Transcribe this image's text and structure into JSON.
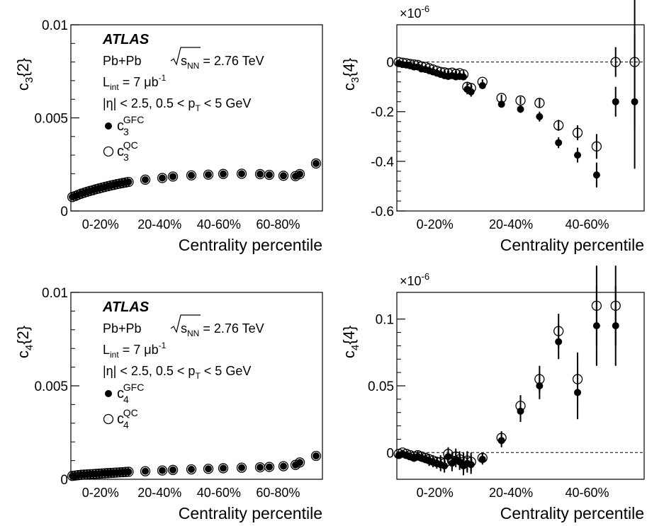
{
  "experiment": "ATLAS",
  "collision": "Pb+Pb",
  "energy_sqrt": "s",
  "energy_sub": "NN",
  "energy_value": "= 2.76 TeV",
  "lumi_main": "L",
  "lumi_sub": "int",
  "lumi_value": "= 7 μb",
  "lumi_exp": "-1",
  "cut_eta": "|η| < 2.5,",
  "cut_pt_pre": "0.5 < p",
  "cut_pt_sub": "T",
  "cut_pt_post": "< 5 GeV",
  "chart_data": [
    {
      "id": "c3_2",
      "type": "scatter",
      "ylabel_main": "c",
      "ylabel_sub": "3",
      "ylabel_rest": "{2}",
      "xlabel": "Centrality percentile",
      "xlim": [
        0,
        85
      ],
      "ylim": [
        0,
        0.01
      ],
      "yticks": [
        0,
        0.005,
        0.01
      ],
      "ytick_labels": [
        "0",
        "0.005",
        "0.01"
      ],
      "xcat_labels": [
        "0-20%",
        "20-40%",
        "40-60%",
        "60-80%"
      ],
      "xcat_centers": [
        10,
        30,
        50,
        70
      ],
      "zero_line": false,
      "legend": [
        {
          "marker": "filled",
          "main": "c",
          "sub": "3",
          "sup": "GFC"
        },
        {
          "marker": "open",
          "main": "c",
          "sub": "3",
          "sup": "QC"
        }
      ],
      "series": [
        {
          "name": "GFC",
          "marker": "filled",
          "x": [
            0.5,
            1.5,
            2.5,
            3.5,
            4.5,
            5.5,
            6.5,
            7.5,
            8.5,
            9.5,
            10.5,
            11.5,
            12.5,
            13.5,
            14.5,
            15.5,
            16.5,
            17.5,
            18.5,
            19.5,
            22.5,
            27.5,
            32.5,
            37.5,
            42.5,
            47.5,
            52.5,
            57.5,
            62.5,
            67.5,
            72.5,
            77.5,
            82.5
          ],
          "y": [
            0.00075,
            0.0008,
            0.00087,
            0.00093,
            0.00098,
            0.00103,
            0.00108,
            0.00112,
            0.00117,
            0.00121,
            0.00125,
            0.00129,
            0.00133,
            0.00137,
            0.0014,
            0.00144,
            0.00147,
            0.0015,
            0.00153,
            0.00156,
            0.00168,
            0.00177,
            0.00185,
            0.00191,
            0.00195,
            0.00199,
            0.002,
            0.00198,
            0.00194,
            0.00189,
            0.00187,
            0.00198,
            0.00255
          ],
          "yerr": [
            0,
            0,
            0,
            0,
            0,
            0,
            0,
            0,
            0,
            0,
            0,
            0,
            0,
            0,
            0,
            0,
            0,
            0,
            0,
            0,
            0,
            0,
            0,
            0,
            0,
            0,
            0,
            0,
            0,
            0,
            0,
            0,
            0
          ]
        },
        {
          "name": "QC",
          "marker": "open",
          "x": [
            0.5,
            1.5,
            2.5,
            3.5,
            4.5,
            5.5,
            6.5,
            7.5,
            8.5,
            9.5,
            10.5,
            11.5,
            12.5,
            13.5,
            14.5,
            15.5,
            16.5,
            17.5,
            18.5,
            19.5,
            22.5,
            27.5,
            32.5,
            37.5,
            42.5,
            47.5,
            52.5,
            57.5,
            62.5,
            67.5,
            72.5,
            77.5,
            82.5
          ],
          "y": [
            0.00075,
            0.0008,
            0.00087,
            0.00093,
            0.00098,
            0.00103,
            0.00108,
            0.00112,
            0.00117,
            0.00121,
            0.00125,
            0.00129,
            0.00133,
            0.00137,
            0.0014,
            0.00144,
            0.00147,
            0.0015,
            0.00153,
            0.00156,
            0.00168,
            0.00177,
            0.00185,
            0.00191,
            0.00195,
            0.00199,
            0.002,
            0.00198,
            0.00194,
            0.00189,
            0.00187,
            0.00198,
            0.00255
          ],
          "yerr": [
            0,
            0,
            0,
            0,
            0,
            0,
            0,
            0,
            0,
            0,
            0,
            0,
            0,
            0,
            0,
            0,
            0,
            0,
            0,
            0,
            0,
            0,
            0,
            0,
            0,
            0,
            0,
            0,
            0,
            0,
            0,
            0,
            0
          ]
        }
      ]
    },
    {
      "id": "c3_4",
      "type": "scatter",
      "ylabel_main": "c",
      "ylabel_sub": "3",
      "ylabel_rest": "{4}",
      "exponent": "×10",
      "exponent_sup": "-6",
      "xlabel": "Centrality percentile",
      "xlim": [
        0,
        65
      ],
      "ylim": [
        -0.6,
        0.15
      ],
      "yticks": [
        -0.6,
        -0.4,
        -0.2,
        0
      ],
      "ytick_labels": [
        "-0.6",
        "-0.4",
        "-0.2",
        "0"
      ],
      "xcat_labels": [
        "0-20%",
        "20-40%",
        "40-60%"
      ],
      "xcat_centers": [
        10,
        30,
        50
      ],
      "zero_line": true,
      "series": [
        {
          "name": "GFC",
          "marker": "filled",
          "x": [
            0.5,
            1.5,
            2.5,
            3.5,
            4.5,
            5.5,
            6.5,
            7.5,
            8.5,
            9.5,
            10.5,
            11.5,
            12.5,
            13.5,
            14.5,
            15.5,
            16.5,
            17.5,
            18.5,
            19.5,
            22.5,
            27.5,
            32.5,
            37.5,
            42.5,
            47.5,
            52.5,
            57.5,
            62.5
          ],
          "y": [
            -0.005,
            -0.01,
            -0.012,
            -0.015,
            -0.02,
            -0.02,
            -0.028,
            -0.03,
            -0.035,
            -0.04,
            -0.045,
            -0.05,
            -0.055,
            -0.058,
            -0.055,
            -0.06,
            -0.058,
            -0.06,
            -0.11,
            -0.12,
            -0.095,
            -0.17,
            -0.19,
            -0.22,
            -0.325,
            -0.375,
            -0.455,
            -0.16,
            -0.16
          ],
          "yerr": [
            0.005,
            0.005,
            0.005,
            0.006,
            0.006,
            0.007,
            0.007,
            0.008,
            0.008,
            0.009,
            0.009,
            0.01,
            0.01,
            0.01,
            0.011,
            0.012,
            0.012,
            0.013,
            0.02,
            0.02,
            0.01,
            0.013,
            0.015,
            0.02,
            0.022,
            0.03,
            0.05,
            0.06,
            0.27
          ]
        },
        {
          "name": "QC",
          "marker": "open",
          "x": [
            0.5,
            1.5,
            2.5,
            3.5,
            4.5,
            5.5,
            6.5,
            7.5,
            8.5,
            9.5,
            10.5,
            11.5,
            12.5,
            13.5,
            14.5,
            15.5,
            16.5,
            17.5,
            18.5,
            19.5,
            22.5,
            27.5,
            32.5,
            37.5,
            42.5,
            47.5,
            52.5,
            57.5,
            62.5
          ],
          "y": [
            0.0,
            -0.003,
            -0.005,
            -0.008,
            -0.01,
            -0.012,
            -0.018,
            -0.02,
            -0.025,
            -0.03,
            -0.035,
            -0.04,
            -0.042,
            -0.045,
            -0.043,
            -0.048,
            -0.045,
            -0.05,
            -0.1,
            -0.105,
            -0.08,
            -0.145,
            -0.155,
            -0.165,
            -0.255,
            -0.285,
            -0.34,
            0.0,
            0.0
          ],
          "yerr": [
            0.005,
            0.005,
            0.005,
            0.006,
            0.006,
            0.007,
            0.007,
            0.008,
            0.008,
            0.009,
            0.009,
            0.01,
            0.01,
            0.01,
            0.011,
            0.012,
            0.012,
            0.013,
            0.02,
            0.02,
            0.01,
            0.013,
            0.015,
            0.02,
            0.022,
            0.03,
            0.05,
            0.06,
            0.27
          ]
        }
      ]
    },
    {
      "id": "c4_2",
      "type": "scatter",
      "ylabel_main": "c",
      "ylabel_sub": "4",
      "ylabel_rest": "{2}",
      "xlabel": "Centrality percentile",
      "xlim": [
        0,
        85
      ],
      "ylim": [
        0,
        0.01
      ],
      "yticks": [
        0,
        0.005,
        0.01
      ],
      "ytick_labels": [
        "0",
        "0.005",
        "0.01"
      ],
      "xcat_labels": [
        "0-20%",
        "20-40%",
        "40-60%",
        "60-80%"
      ],
      "xcat_centers": [
        10,
        30,
        50,
        70
      ],
      "zero_line": false,
      "legend": [
        {
          "marker": "filled",
          "main": "c",
          "sub": "4",
          "sup": "GFC"
        },
        {
          "marker": "open",
          "main": "c",
          "sub": "4",
          "sup": "QC"
        }
      ],
      "series": [
        {
          "name": "GFC",
          "marker": "filled",
          "x": [
            0.5,
            1.5,
            2.5,
            3.5,
            4.5,
            5.5,
            6.5,
            7.5,
            8.5,
            9.5,
            10.5,
            11.5,
            12.5,
            13.5,
            14.5,
            15.5,
            16.5,
            17.5,
            18.5,
            19.5,
            22.5,
            27.5,
            32.5,
            37.5,
            42.5,
            47.5,
            52.5,
            57.5,
            62.5,
            67.5,
            72.5,
            77.5,
            82.5
          ],
          "y": [
            0.00018,
            0.0002,
            0.00022,
            0.00024,
            0.00025,
            0.00026,
            0.00027,
            0.00028,
            0.00029,
            0.0003,
            0.00031,
            0.00032,
            0.00033,
            0.00034,
            0.00035,
            0.00036,
            0.00037,
            0.00038,
            0.00039,
            0.0004,
            0.00043,
            0.00047,
            0.0005,
            0.00053,
            0.00056,
            0.00059,
            0.00062,
            0.00064,
            0.00066,
            0.0007,
            0.00077,
            0.0009,
            0.00125
          ],
          "yerr": [
            0,
            0,
            0,
            0,
            0,
            0,
            0,
            0,
            0,
            0,
            0,
            0,
            0,
            0,
            0,
            0,
            0,
            0,
            0,
            0,
            0,
            0,
            0,
            0,
            0,
            0,
            0,
            0,
            0,
            0,
            0,
            0,
            0
          ]
        },
        {
          "name": "QC",
          "marker": "open",
          "x": [
            0.5,
            1.5,
            2.5,
            3.5,
            4.5,
            5.5,
            6.5,
            7.5,
            8.5,
            9.5,
            10.5,
            11.5,
            12.5,
            13.5,
            14.5,
            15.5,
            16.5,
            17.5,
            18.5,
            19.5,
            22.5,
            27.5,
            32.5,
            37.5,
            42.5,
            47.5,
            52.5,
            57.5,
            62.5,
            67.5,
            72.5,
            77.5,
            82.5
          ],
          "y": [
            0.00018,
            0.0002,
            0.00022,
            0.00024,
            0.00025,
            0.00026,
            0.00027,
            0.00028,
            0.00029,
            0.0003,
            0.00031,
            0.00032,
            0.00033,
            0.00034,
            0.00035,
            0.00036,
            0.00037,
            0.00038,
            0.00039,
            0.0004,
            0.00043,
            0.00047,
            0.0005,
            0.00053,
            0.00056,
            0.00059,
            0.00062,
            0.00064,
            0.00066,
            0.0007,
            0.00077,
            0.0009,
            0.00125
          ],
          "yerr": [
            0,
            0,
            0,
            0,
            0,
            0,
            0,
            0,
            0,
            0,
            0,
            0,
            0,
            0,
            0,
            0,
            0,
            0,
            0,
            0,
            0,
            0,
            0,
            0,
            0,
            0,
            0,
            0,
            0,
            0,
            0,
            0,
            0
          ]
        }
      ]
    },
    {
      "id": "c4_4",
      "type": "scatter",
      "ylabel_main": "c",
      "ylabel_sub": "4",
      "ylabel_rest": "{4}",
      "exponent": "×10",
      "exponent_sup": "-6",
      "xlabel": "Centrality percentile",
      "xlim": [
        0,
        65
      ],
      "ylim": [
        -0.02,
        0.12
      ],
      "yticks": [
        0,
        0.05,
        0.1
      ],
      "ytick_labels": [
        "0",
        "0.05",
        "0.1"
      ],
      "xcat_labels": [
        "0-20%",
        "20-40%",
        "40-60%"
      ],
      "xcat_centers": [
        10,
        30,
        50
      ],
      "zero_line": true,
      "series": [
        {
          "name": "GFC",
          "marker": "filled",
          "x": [
            0.5,
            1.5,
            2.5,
            3.5,
            4.5,
            5.5,
            6.5,
            7.5,
            8.5,
            9.5,
            10.5,
            11.5,
            12.5,
            13.5,
            14.5,
            15.5,
            16.5,
            17.5,
            18.5,
            19.5,
            22.5,
            27.5,
            32.5,
            37.5,
            42.5,
            47.5,
            52.5,
            57.5
          ],
          "y": [
            -0.002,
            -0.001,
            -0.002,
            -0.003,
            -0.004,
            -0.003,
            -0.004,
            -0.005,
            -0.006,
            -0.007,
            -0.008,
            -0.009,
            -0.01,
            -0.003,
            -0.008,
            -0.005,
            -0.007,
            -0.01,
            -0.008,
            -0.009,
            -0.005,
            0.009,
            0.031,
            0.05,
            0.083,
            0.045,
            0.095,
            0.095
          ],
          "yerr": [
            0.002,
            0.002,
            0.002,
            0.002,
            0.003,
            0.003,
            0.003,
            0.003,
            0.004,
            0.004,
            0.004,
            0.005,
            0.005,
            0.005,
            0.006,
            0.006,
            0.006,
            0.007,
            0.007,
            0.007,
            0.004,
            0.005,
            0.008,
            0.01,
            0.013,
            0.02,
            0.03,
            0.03
          ]
        },
        {
          "name": "QC",
          "marker": "open",
          "x": [
            0.5,
            1.5,
            2.5,
            3.5,
            4.5,
            5.5,
            6.5,
            7.5,
            8.5,
            9.5,
            10.5,
            11.5,
            12.5,
            13.5,
            14.5,
            15.5,
            16.5,
            17.5,
            18.5,
            19.5,
            22.5,
            27.5,
            32.5,
            37.5,
            42.5,
            47.5,
            52.5,
            57.5
          ],
          "y": [
            -0.001,
            0.0,
            -0.001,
            -0.002,
            -0.003,
            -0.002,
            -0.003,
            -0.004,
            -0.005,
            -0.006,
            -0.007,
            -0.007,
            -0.008,
            -0.001,
            -0.006,
            -0.003,
            -0.005,
            -0.007,
            -0.006,
            -0.007,
            -0.004,
            0.011,
            0.035,
            0.055,
            0.091,
            0.055,
            0.11,
            0.11
          ],
          "yerr": [
            0.002,
            0.002,
            0.002,
            0.002,
            0.003,
            0.003,
            0.003,
            0.003,
            0.004,
            0.004,
            0.004,
            0.005,
            0.005,
            0.005,
            0.006,
            0.006,
            0.006,
            0.007,
            0.007,
            0.007,
            0.004,
            0.005,
            0.008,
            0.01,
            0.013,
            0.02,
            0.03,
            0.03
          ]
        }
      ]
    }
  ]
}
